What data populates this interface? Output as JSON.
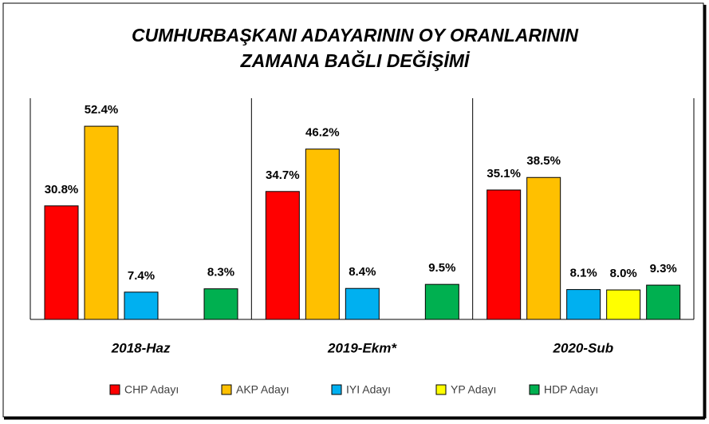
{
  "chart_data": {
    "type": "bar",
    "title": [
      "CUMHURBAŞKANI ADAYARININ OY ORANLARININ",
      "ZAMANA BAĞLI DEĞİŞİMİ"
    ],
    "categories": [
      "2018-Haz",
      "2019-Ekm*",
      "2020-Sub"
    ],
    "series": [
      {
        "name": "CHP Adayı",
        "color": "#ff0000",
        "values": [
          30.8,
          34.7,
          35.1
        ],
        "value_labels": [
          "30.8%",
          "34.7%",
          "35.1%"
        ]
      },
      {
        "name": "AKP Adayı",
        "color": "#ffc000",
        "values": [
          52.4,
          46.2,
          38.5
        ],
        "value_labels": [
          "52.4%",
          "46.2%",
          "38.5%"
        ]
      },
      {
        "name": "IYI Adayı",
        "color": "#00b0f0",
        "values": [
          7.4,
          8.4,
          8.1
        ],
        "value_labels": [
          "7.4%",
          "8.4%",
          "8.1%"
        ]
      },
      {
        "name": "YP Adayı",
        "color": "#ffff00",
        "values": [
          null,
          null,
          8.0
        ],
        "value_labels": [
          null,
          null,
          "8.0%"
        ]
      },
      {
        "name": "HDP Adayı",
        "color": "#00b050",
        "values": [
          8.3,
          9.5,
          9.3
        ],
        "value_labels": [
          "8.3%",
          "9.5%",
          "9.3%"
        ]
      }
    ],
    "ylim": [
      0,
      60
    ],
    "legend": "bottom"
  }
}
